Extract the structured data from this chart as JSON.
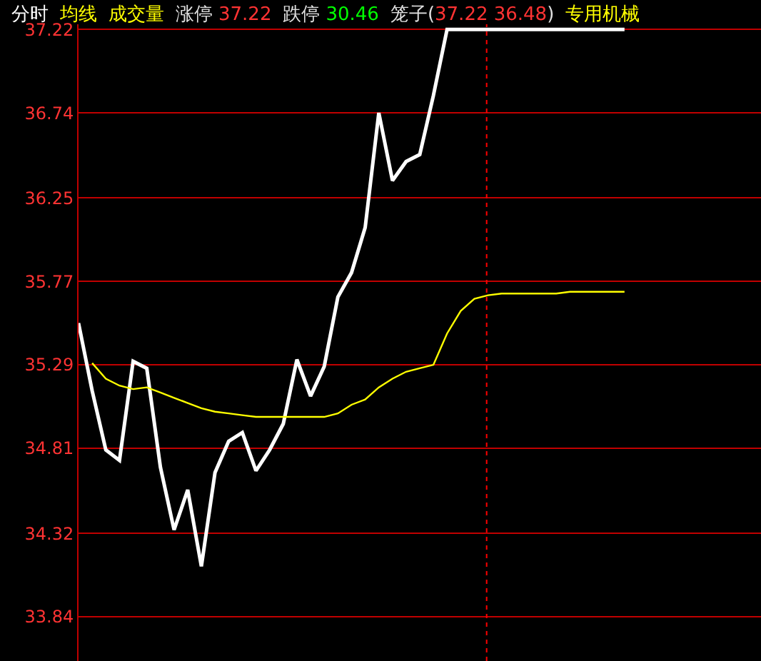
{
  "chart_data": {
    "type": "line",
    "categories": [
      null,
      null,
      null,
      null,
      null,
      null,
      null,
      null,
      null,
      null,
      null,
      null,
      null,
      null,
      null,
      null,
      null,
      null,
      null,
      null,
      null,
      null,
      null,
      null,
      null,
      null,
      null,
      null,
      null,
      null,
      null,
      null,
      null,
      null,
      null,
      null,
      null,
      null,
      null,
      null,
      null,
      null,
      null,
      null,
      null,
      null,
      null,
      null,
      null,
      null,
      null
    ],
    "series": [
      {
        "name": "分时",
        "color": "#ffffff",
        "values": [
          35.53,
          35.14,
          34.8,
          34.74,
          35.31,
          35.27,
          34.7,
          34.34,
          34.57,
          34.13,
          34.67,
          34.85,
          34.9,
          34.68,
          34.8,
          34.95,
          35.32,
          35.11,
          35.28,
          35.68,
          35.82,
          36.08,
          36.74,
          36.35,
          36.46,
          36.5,
          36.84,
          37.22,
          37.22,
          37.22,
          37.22,
          37.22,
          37.22,
          37.22,
          37.22,
          37.22,
          37.22,
          37.22,
          37.22,
          37.22,
          37.22,
          null,
          null,
          null,
          null,
          null,
          null,
          null,
          null,
          null,
          null
        ]
      },
      {
        "name": "均线",
        "color": "#ffff00",
        "values": [
          null,
          35.3,
          35.21,
          35.17,
          35.15,
          35.16,
          35.13,
          35.1,
          35.07,
          35.04,
          35.02,
          35.01,
          35.0,
          34.99,
          34.99,
          34.99,
          34.99,
          34.99,
          34.99,
          35.01,
          35.06,
          35.09,
          35.16,
          35.21,
          35.25,
          35.27,
          35.29,
          35.47,
          35.6,
          35.67,
          35.69,
          35.7,
          35.7,
          35.7,
          35.7,
          35.7,
          35.71,
          35.71,
          35.71,
          35.71,
          35.71,
          null,
          null,
          null,
          null,
          null,
          null,
          null,
          null,
          null,
          null
        ]
      }
    ],
    "annotations": [
      "成交量",
      "涨停",
      "37.22",
      "跌停",
      "30.46",
      "笼子(37.22 36.48)",
      "专用机械"
    ],
    "ylim": [
      33.585,
      37.25
    ],
    "yticks": [
      37.22,
      36.74,
      36.25,
      35.77,
      35.29,
      34.81,
      34.32,
      33.84
    ],
    "grid": "y",
    "legend": "top left",
    "tick_labels": "y",
    "marker": "none",
    "line_style": "solid"
  }
}
